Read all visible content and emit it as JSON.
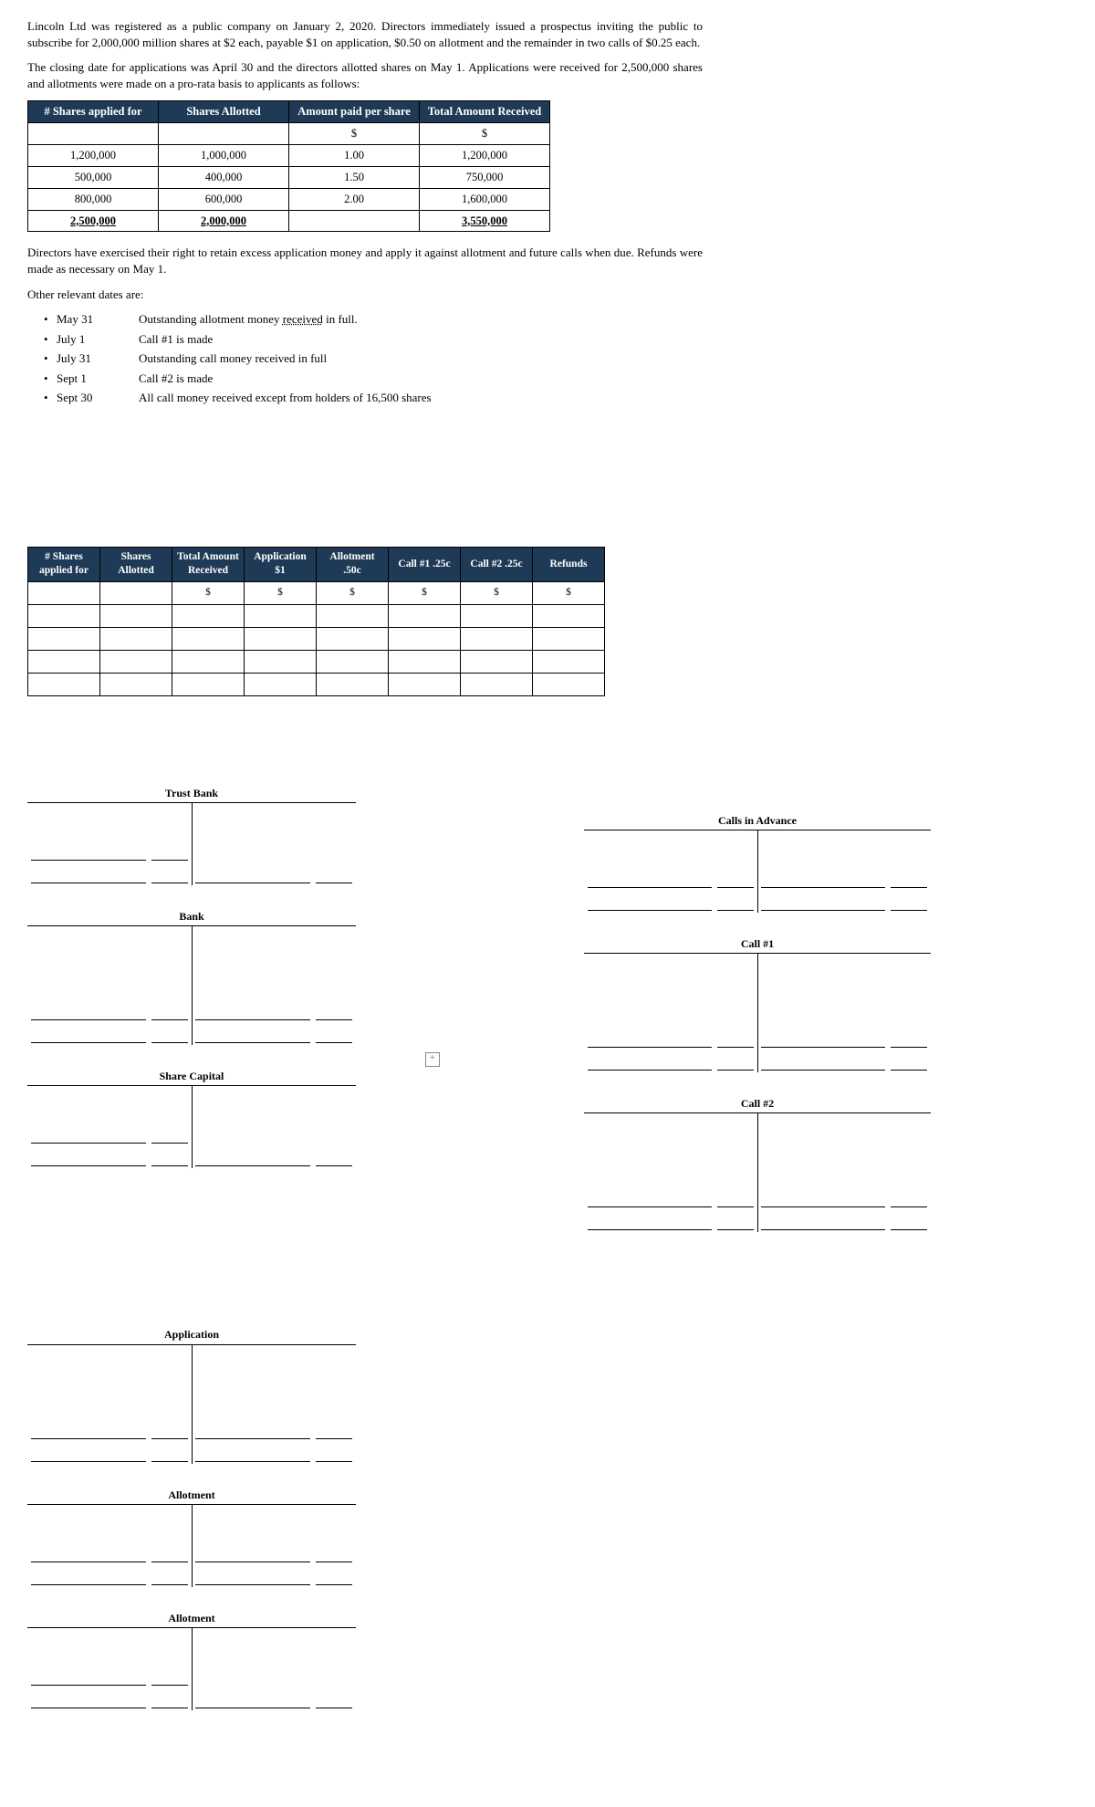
{
  "paragraphs": {
    "p1": "Lincoln Ltd was registered as a public company on January 2, 2020. Directors immediately issued a prospectus inviting the public to subscribe for 2,000,000 million shares at $2 each, payable $1 on application, $0.50 on allotment and the remainder in two calls of $0.25 each.",
    "p2": "The closing date for applications was April 30 and the directors allotted shares on May 1. Applications were received for 2,500,000 shares and allotments were made on a pro-rata basis to applicants as follows:",
    "p3": "Directors have exercised their right to retain excess application money and apply it against allotment and future calls when due. Refunds were made as necessary on May 1.",
    "p4": "Other relevant dates are:"
  },
  "table1": {
    "headers": [
      "# Shares applied for",
      "Shares Allotted",
      "Amount paid per share",
      "Total Amount Received"
    ],
    "unitRow": [
      "",
      "",
      "$",
      "$"
    ],
    "rows": [
      [
        "1,200,000",
        "1,000,000",
        "1.00",
        "1,200,000"
      ],
      [
        "500,000",
        "400,000",
        "1.50",
        "750,000"
      ],
      [
        "800,000",
        "600,000",
        "2.00",
        "1,600,000"
      ]
    ],
    "totals": [
      "2,500,000",
      "2,000,000",
      "",
      "3,550,000"
    ]
  },
  "dates": [
    {
      "d": "May 31",
      "txt_pre": "Outstanding allotment money ",
      "txt_u": "received",
      "txt_post": " in full."
    },
    {
      "d": "July 1",
      "txt_pre": "Call #1 is made",
      "txt_u": "",
      "txt_post": ""
    },
    {
      "d": "July 31",
      "txt_pre": "Outstanding call money received in full",
      "txt_u": "",
      "txt_post": ""
    },
    {
      "d": "Sept 1",
      "txt_pre": "Call #2 is made",
      "txt_u": "",
      "txt_post": ""
    },
    {
      "d": "Sept 30",
      "txt_pre": "All call money received except from holders of 16,500 shares",
      "txt_u": "",
      "txt_post": ""
    }
  ],
  "table2": {
    "headers": [
      "# Shares applied for",
      "Shares Allotted",
      "Total Amount Received",
      "Application $1",
      "Allotment .50c",
      "Call #1 .25c",
      "Call #2 .25c",
      "Refunds"
    ],
    "unitRow": [
      "",
      "",
      "$",
      "$",
      "$",
      "$",
      "$",
      "$"
    ],
    "blankRows": 4
  },
  "ledgers_left_1": [
    {
      "title": "Trust Bank",
      "left_lines": 2,
      "right_lines": 1,
      "tall": false
    },
    {
      "title": "Bank",
      "left_lines": 2,
      "right_lines": 2,
      "tall": true
    },
    {
      "title": "Share Capital",
      "left_lines": 2,
      "right_lines": 1,
      "tall": false
    }
  ],
  "ledgers_right": [
    {
      "title": "Calls in Advance",
      "left_lines": 2,
      "right_lines": 2,
      "tall": false
    },
    {
      "title": "Call #1",
      "left_lines": 2,
      "right_lines": 2,
      "tall": true
    },
    {
      "title": "Call #2",
      "left_lines": 2,
      "right_lines": 2,
      "tall": true
    }
  ],
  "ledgers_left_2": [
    {
      "title": "Application",
      "left_lines": 2,
      "right_lines": 2,
      "tall": true
    },
    {
      "title": "Allotment",
      "left_lines": 2,
      "right_lines": 2,
      "tall": false
    },
    {
      "title": "Allotment",
      "left_lines": 2,
      "right_lines": 1,
      "tall": false
    }
  ],
  "colors": {
    "table_header_bg": "#1f3a57",
    "table_header_fg": "#ffffff",
    "border": "#000000"
  }
}
